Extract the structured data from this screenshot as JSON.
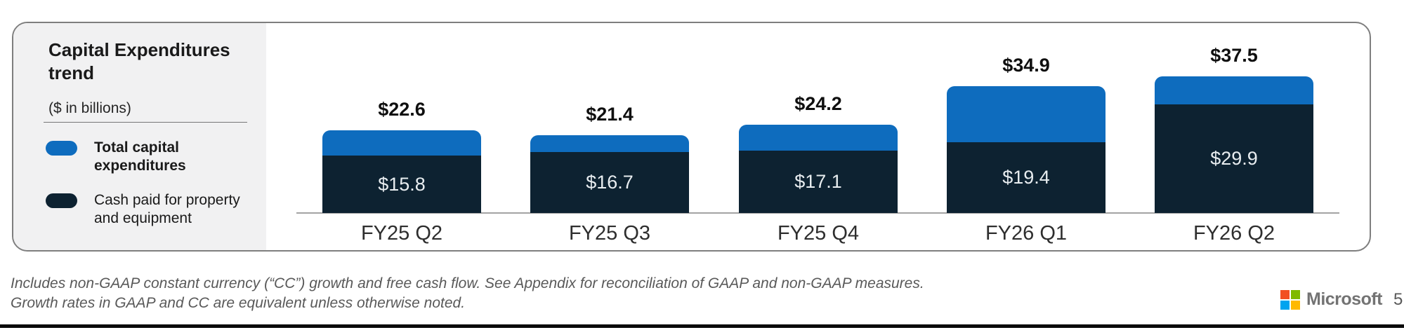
{
  "panel": {
    "title": "Capital Expenditures trend",
    "subtitle": "($ in billions)",
    "legend": [
      {
        "label": "Total capital expenditures",
        "color": "#0e6cbe"
      },
      {
        "label": "Cash paid for property and equipment",
        "color": "#0d2231"
      }
    ]
  },
  "chart_data": {
    "type": "bar",
    "stacked": true,
    "title": "Capital Expenditures trend",
    "units": "$ in billions",
    "categories": [
      "FY25 Q2",
      "FY25 Q3",
      "FY25 Q4",
      "FY26 Q1",
      "FY26 Q2"
    ],
    "series": [
      {
        "name": "Total capital expenditures",
        "color": "#0e6cbe",
        "values": [
          22.6,
          21.4,
          24.2,
          34.9,
          37.5
        ]
      },
      {
        "name": "Cash paid for property and equipment",
        "color": "#0d2231",
        "values": [
          15.8,
          16.7,
          17.1,
          19.4,
          29.9
        ]
      }
    ],
    "bar_total_labels": [
      "$22.6",
      "$21.4",
      "$24.2",
      "$34.9",
      "$37.5"
    ],
    "bar_inner_labels": [
      "$15.8",
      "$16.7",
      "$17.1",
      "$19.4",
      "$29.9"
    ],
    "ylim": [
      0,
      40
    ],
    "grid": false,
    "legend_position": "left"
  },
  "footnote": {
    "line1": "Includes non-GAAP constant currency (“CC”) growth and free cash flow. See Appendix for reconciliation of GAAP and non-GAAP measures.",
    "line2": "Growth rates in GAAP and CC are equivalent unless otherwise noted."
  },
  "footer": {
    "brand": "Microsoft",
    "page_number": "5",
    "logo_colors": [
      "#f25022",
      "#7fba00",
      "#00a4ef",
      "#ffb900"
    ]
  },
  "colors": {
    "panel_bg": "#f1f1f2",
    "card_border": "#7e7e7e",
    "axis_line": "#a3a3a3",
    "footnote_text": "#595959",
    "bottom_rule": "#0a0a0a"
  }
}
